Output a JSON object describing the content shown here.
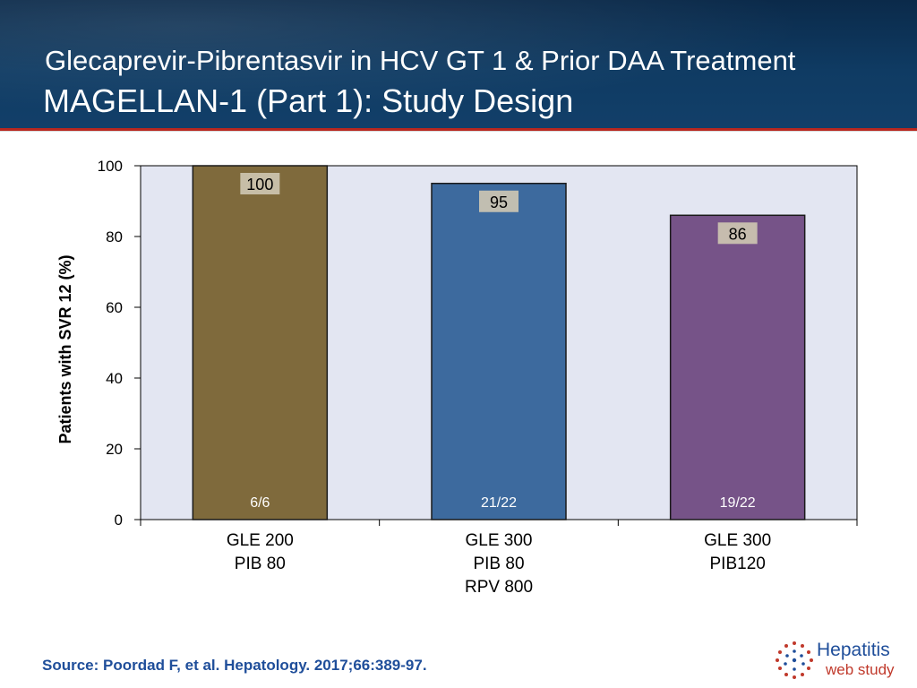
{
  "header": {
    "subtitle": "Glecaprevir-Pibrentasvir in HCV GT 1 & Prior DAA Treatment",
    "title": "MAGELLAN-1 (Part 1): Study Design"
  },
  "colors": {
    "header_bg": "#0f3b63",
    "accent_rule": "#b8271f",
    "plot_bg": "#e3e6f2",
    "source_text": "#1f4e9a"
  },
  "chart_data": {
    "type": "bar",
    "ylabel": "Patients with SVR 12 (%)",
    "ylim": [
      0,
      100
    ],
    "yticks": [
      0,
      20,
      40,
      60,
      80,
      100
    ],
    "grid": false,
    "categories": [
      [
        "GLE 200",
        "PIB 80"
      ],
      [
        "GLE 300",
        "PIB 80",
        "RPV 800"
      ],
      [
        "GLE 300",
        "PIB120"
      ]
    ],
    "values": [
      100,
      95,
      86
    ],
    "value_labels": [
      "100",
      "95",
      "86"
    ],
    "counts": [
      "6/6",
      "21/22",
      "19/22"
    ],
    "bar_colors": [
      "#7f6a3c",
      "#3d6a9e",
      "#765388"
    ]
  },
  "footer": {
    "source": "Source: Poordad F, et al. Hepatology. 2017;66:389-97.",
    "logo_line1": "Hepatitis",
    "logo_line2": "web study",
    "logo_icon": "dotted-sphere-icon"
  }
}
